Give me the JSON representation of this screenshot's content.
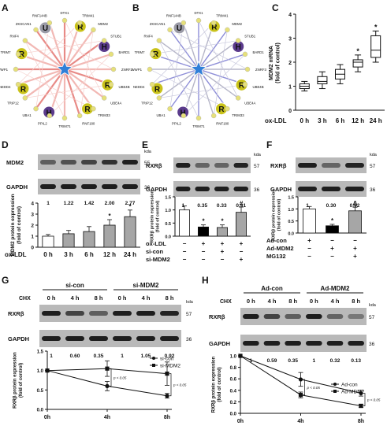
{
  "panels": {
    "A": {
      "letter": "A",
      "hub_nodes": [
        "R",
        "U",
        "R",
        "H",
        "R",
        "R",
        "H",
        "R"
      ],
      "gene_labels": [
        "DTX1",
        "TRIM41",
        "MDM2",
        "STUB1",
        "BARD1",
        "ZNRF3",
        "UBE4B",
        "UBE4A",
        "TRIM33",
        "RNF180",
        "TRIM71",
        "PPIL2",
        "UBA1",
        "TRIP12",
        "NEDD4",
        "WWP1",
        "TRIM7",
        "RNF4",
        "ZKSCAN1",
        "RNF144B"
      ]
    },
    "B": {
      "letter": "B",
      "hub_nodes": [
        "R",
        "U",
        "R",
        "H",
        "R",
        "R",
        "H",
        "R"
      ],
      "gene_labels": [
        "DTX1",
        "TRIM41",
        "MDM2",
        "STUB1",
        "BARD1",
        "ZNRF3",
        "UBE4B",
        "UBE4A",
        "TRIM33",
        "RNF180",
        "TRIM71",
        "PPIL2",
        "UBA1",
        "TRIP12",
        "NEDD4",
        "WWP1",
        "TRIM7",
        "RNF4",
        "ZKSCAN1",
        "RNF144B"
      ]
    },
    "C": {
      "letter": "C",
      "ylabel": "MDM2 mRNA\n(fold of control)",
      "xlabel": "ox-LDL",
      "yticks": [
        "0",
        "1",
        "2",
        "3",
        "4"
      ],
      "categories": [
        "0 h",
        "3 h",
        "6 h",
        "12 h",
        "24 h"
      ]
    },
    "D": {
      "letter": "D",
      "blot_rows": [
        {
          "name": "MDM2",
          "kda": "55"
        },
        {
          "name": "GAPDH",
          "kda": "36"
        }
      ],
      "kda_label": "kda",
      "quant": [
        "1",
        "1.22",
        "1.42",
        "2.00",
        "2.77"
      ],
      "ylabel": "MDM2 protein expression\n(fold of control)",
      "xlabel": "ox-LDL",
      "categories": [
        "0 h",
        "3 h",
        "6 h",
        "12 h",
        "24 h"
      ],
      "yticks": [
        "0",
        "1",
        "2",
        "3",
        "4"
      ]
    },
    "E": {
      "letter": "E",
      "blot_rows": [
        {
          "name": "RXRβ",
          "kda": "57"
        },
        {
          "name": "GAPDH",
          "kda": "36"
        }
      ],
      "kda_label": "kda",
      "quant": [
        "1",
        "0.35",
        "0.33",
        "0.91"
      ],
      "ylabel": "RXRβ protein expression\n(fold of control)",
      "yticks": [
        "0.0",
        "0.5",
        "1.0",
        "1.5"
      ],
      "conditions": [
        {
          "name": "ox-LDL",
          "marks": [
            "−",
            "+",
            "+",
            "+"
          ]
        },
        {
          "name": "si-con",
          "marks": [
            "−",
            "−",
            "+",
            "−"
          ]
        },
        {
          "name": "si-MDM2",
          "marks": [
            "−",
            "−",
            "−",
            "+"
          ]
        }
      ]
    },
    "F": {
      "letter": "F",
      "blot_rows": [
        {
          "name": "RXRβ",
          "kda": "57"
        },
        {
          "name": "GAPDH",
          "kda": "36"
        }
      ],
      "kda_label": "kda",
      "quant": [
        "1",
        "0.30",
        "0.92"
      ],
      "ylabel": "RXRβ protein expression\n(fold of control)",
      "yticks": [
        "0.0",
        "0.5",
        "1.0",
        "1.5"
      ],
      "conditions": [
        {
          "name": "Ad-con",
          "marks": [
            "+",
            "−",
            "−"
          ]
        },
        {
          "name": "Ad-MDM2",
          "marks": [
            "−",
            "+",
            "+"
          ]
        },
        {
          "name": "MG132",
          "marks": [
            "−",
            "−",
            "+"
          ]
        }
      ]
    },
    "G": {
      "letter": "G",
      "group_labels": [
        "si-con",
        "si-MDM2"
      ],
      "chx": "CHX",
      "times": [
        "0 h",
        "4 h",
        "8 h",
        "0 h",
        "4 h",
        "8 h"
      ],
      "blot_rows": [
        {
          "name": "RXRβ",
          "kda": "57"
        },
        {
          "name": "GAPDH",
          "kda": "36"
        }
      ],
      "kda_label": "kda",
      "quant": [
        "1",
        "0.60",
        "0.35",
        "1",
        "1.05",
        "0.92"
      ],
      "ylabel": "RXRβ protein expression\n(fold of control)",
      "x_ticks": [
        "0h",
        "4h",
        "8h"
      ],
      "y_ticks": [
        "0.0",
        "0.5",
        "1.0",
        "1.5"
      ],
      "pvals": [
        "p < 0.05",
        "p < 0.05"
      ]
    },
    "H": {
      "letter": "H",
      "group_labels": [
        "Ad-con",
        "Ad-MDM2"
      ],
      "chx": "CHX",
      "times": [
        "0 h",
        "4 h",
        "8 h",
        "0 h",
        "4 h",
        "8 h"
      ],
      "blot_rows": [
        {
          "name": "RXRβ",
          "kda": "57"
        },
        {
          "name": "GAPDH",
          "kda": "36"
        }
      ],
      "kda_label": "kda",
      "quant": [
        "1",
        "0.59",
        "0.35",
        "1",
        "0.32",
        "0.13"
      ],
      "ylabel": "RXRβ protein expression\n(fold of control)",
      "x_ticks": [
        "0h",
        "4h",
        "8h"
      ],
      "y_ticks": [
        "0.0",
        "0.2",
        "0.4",
        "0.6",
        "0.8",
        "1.0"
      ],
      "pvals": [
        "p < 0.05",
        "p < 0.05"
      ]
    }
  },
  "chart_data": [
    {
      "panel": "C",
      "type": "box",
      "categories": [
        "0 h",
        "3 h",
        "6 h",
        "12 h",
        "24 h"
      ],
      "boxes": [
        {
          "min": 0.8,
          "q1": 0.9,
          "median": 1.0,
          "q3": 1.1,
          "max": 1.2
        },
        {
          "min": 0.9,
          "q1": 1.1,
          "median": 1.2,
          "q3": 1.4,
          "max": 1.6
        },
        {
          "min": 1.1,
          "q1": 1.3,
          "median": 1.5,
          "q3": 1.7,
          "max": 1.9
        },
        {
          "min": 1.6,
          "q1": 1.8,
          "median": 2.0,
          "q3": 2.1,
          "max": 2.3
        },
        {
          "min": 2.0,
          "q1": 2.2,
          "median": 2.5,
          "q3": 3.1,
          "max": 3.3
        }
      ],
      "signif": [
        "",
        "",
        "",
        "*",
        "*"
      ],
      "ylim": [
        0,
        4
      ]
    },
    {
      "panel": "D",
      "type": "bar",
      "categories": [
        "0 h",
        "3 h",
        "6 h",
        "12 h",
        "24 h"
      ],
      "values": [
        1.0,
        1.22,
        1.42,
        2.0,
        2.77
      ],
      "errors": [
        0.15,
        0.3,
        0.45,
        0.5,
        0.6
      ],
      "signif": [
        "",
        "",
        "",
        "*",
        "*"
      ],
      "ylim": [
        0,
        4
      ],
      "colors": [
        "#ffffff",
        "#a6a6a6",
        "#a6a6a6",
        "#a6a6a6",
        "#a6a6a6"
      ]
    },
    {
      "panel": "E",
      "type": "bar",
      "values": [
        1.0,
        0.35,
        0.33,
        0.91
      ],
      "errors": [
        0.15,
        0.08,
        0.1,
        0.2
      ],
      "signif": [
        "",
        "*",
        "*",
        "#"
      ],
      "ylim": [
        0,
        1.5
      ],
      "colors": [
        "#ffffff",
        "#000000",
        "#a6a6a6",
        "#a6a6a6"
      ]
    },
    {
      "panel": "F",
      "type": "bar",
      "values": [
        1.0,
        0.3,
        0.92
      ],
      "errors": [
        0.1,
        0.06,
        0.15
      ],
      "signif": [
        "",
        "*",
        "Δ"
      ],
      "ylim": [
        0,
        1.5
      ],
      "colors": [
        "#ffffff",
        "#000000",
        "#a6a6a6"
      ]
    },
    {
      "panel": "G",
      "type": "line",
      "x": [
        "0h",
        "4h",
        "8h"
      ],
      "ylim": [
        0,
        1.5
      ],
      "series": [
        {
          "name": "si-con",
          "values": [
            1.0,
            0.6,
            0.35
          ],
          "errors": [
            0,
            0.12,
            0.06
          ],
          "marker": "circle"
        },
        {
          "name": "si-MDM2",
          "values": [
            1.0,
            1.05,
            0.92
          ],
          "errors": [
            0,
            0.2,
            0.3
          ],
          "marker": "square"
        }
      ]
    },
    {
      "panel": "H",
      "type": "line",
      "x": [
        "0h",
        "4h",
        "8h"
      ],
      "ylim": [
        0,
        1.0
      ],
      "series": [
        {
          "name": "Ad-con",
          "values": [
            1.0,
            0.59,
            0.35
          ],
          "errors": [
            0,
            0.12,
            0.05
          ],
          "marker": "circle"
        },
        {
          "name": "Ad-MDM2",
          "values": [
            1.0,
            0.32,
            0.13
          ],
          "errors": [
            0,
            0.05,
            0.03
          ],
          "marker": "square"
        }
      ]
    }
  ]
}
